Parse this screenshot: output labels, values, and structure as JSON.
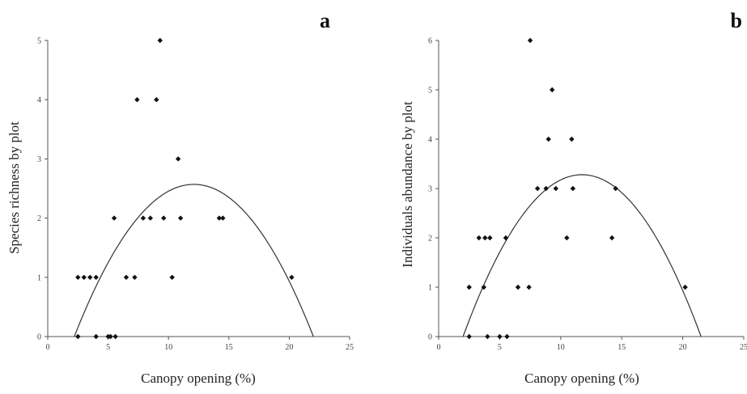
{
  "chart_data": [
    {
      "panel_letter": "a",
      "type": "scatter",
      "xlabel": "Canopy opening (%)",
      "ylabel": "Species richness by plot",
      "xlim": [
        0,
        25
      ],
      "ylim": [
        0,
        5
      ],
      "xticks": [
        0,
        5,
        10,
        15,
        20,
        25
      ],
      "yticks": [
        0,
        1,
        2,
        3,
        4,
        5
      ],
      "points": [
        {
          "x": 2.5,
          "y": 0
        },
        {
          "x": 4.0,
          "y": 0
        },
        {
          "x": 5.0,
          "y": 0
        },
        {
          "x": 5.2,
          "y": 0
        },
        {
          "x": 5.6,
          "y": 0
        },
        {
          "x": 2.5,
          "y": 1
        },
        {
          "x": 3.0,
          "y": 1
        },
        {
          "x": 3.5,
          "y": 1
        },
        {
          "x": 4.0,
          "y": 1
        },
        {
          "x": 6.5,
          "y": 1
        },
        {
          "x": 7.2,
          "y": 1
        },
        {
          "x": 10.3,
          "y": 1
        },
        {
          "x": 20.2,
          "y": 1
        },
        {
          "x": 5.5,
          "y": 2
        },
        {
          "x": 7.9,
          "y": 2
        },
        {
          "x": 8.5,
          "y": 2
        },
        {
          "x": 9.6,
          "y": 2
        },
        {
          "x": 11.0,
          "y": 2
        },
        {
          "x": 14.2,
          "y": 2
        },
        {
          "x": 14.5,
          "y": 2
        },
        {
          "x": 10.8,
          "y": 3
        },
        {
          "x": 7.4,
          "y": 4
        },
        {
          "x": 9.0,
          "y": 4
        },
        {
          "x": 9.3,
          "y": 5
        }
      ],
      "fit": {
        "type": "quadratic",
        "vertex_x": 12.1,
        "vertex_y": 2.57,
        "roots": [
          2.2,
          22.0
        ]
      }
    },
    {
      "panel_letter": "b",
      "type": "scatter",
      "xlabel": "Canopy opening (%)",
      "ylabel": "Individuals abundance by plot",
      "xlim": [
        0,
        25
      ],
      "ylim": [
        0,
        6
      ],
      "xticks": [
        0,
        5,
        10,
        15,
        20,
        25
      ],
      "yticks": [
        0,
        1,
        2,
        3,
        4,
        5,
        6
      ],
      "points": [
        {
          "x": 2.5,
          "y": 0
        },
        {
          "x": 4.0,
          "y": 0
        },
        {
          "x": 5.0,
          "y": 0
        },
        {
          "x": 5.6,
          "y": 0
        },
        {
          "x": 2.5,
          "y": 1
        },
        {
          "x": 3.7,
          "y": 1
        },
        {
          "x": 6.5,
          "y": 1
        },
        {
          "x": 7.4,
          "y": 1
        },
        {
          "x": 20.2,
          "y": 1
        },
        {
          "x": 3.3,
          "y": 2
        },
        {
          "x": 3.8,
          "y": 2
        },
        {
          "x": 4.2,
          "y": 2
        },
        {
          "x": 5.5,
          "y": 2
        },
        {
          "x": 10.5,
          "y": 2
        },
        {
          "x": 14.2,
          "y": 2
        },
        {
          "x": 8.1,
          "y": 3
        },
        {
          "x": 8.8,
          "y": 3
        },
        {
          "x": 9.6,
          "y": 3
        },
        {
          "x": 11.0,
          "y": 3
        },
        {
          "x": 14.5,
          "y": 3
        },
        {
          "x": 9.0,
          "y": 4
        },
        {
          "x": 10.9,
          "y": 4
        },
        {
          "x": 9.3,
          "y": 5
        },
        {
          "x": 7.5,
          "y": 6
        }
      ],
      "fit": {
        "type": "quadratic",
        "vertex_x": 11.8,
        "vertex_y": 3.28,
        "roots": [
          2.0,
          21.5
        ]
      }
    }
  ]
}
